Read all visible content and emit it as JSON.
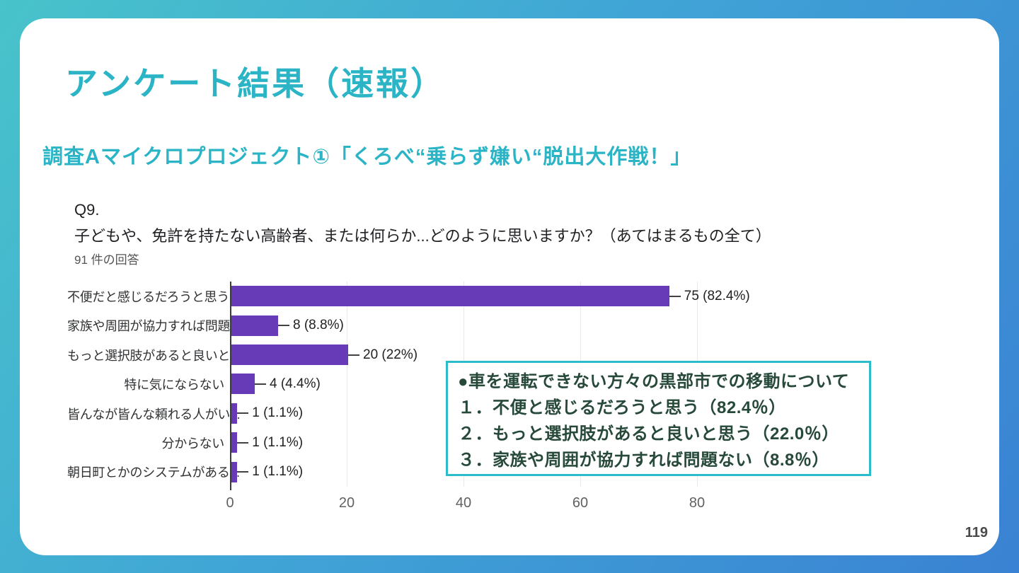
{
  "slide": {
    "title": "アンケート結果（速報）",
    "subtitle": "調査Aマイクロプロジェクト①「くろべ“乗らず嫌い“脱出大作戦！」",
    "page_number": "119"
  },
  "chart_data": {
    "type": "bar",
    "orientation": "horizontal",
    "question_number": "Q9.",
    "question": "子どもや、免許を持たない高齢者、または何らか...どのように思いますか？（あてはまるもの全て）",
    "responses_note": "91 件の回答",
    "categories": [
      "不便だと感じるだろうと思う",
      "家族や周囲が協力すれば問題...",
      "もっと選択肢があると良いと...",
      "特に気にならない",
      "皆んなが皆んな頼れる人がい...",
      "分からない",
      "朝日町とかのシステムがある..."
    ],
    "values": [
      75,
      8,
      20,
      4,
      1,
      1,
      1
    ],
    "value_labels": [
      "75 (82.4%)",
      "8 (8.8%)",
      "20 (22%)",
      "4 (4.4%)",
      "1 (1.1%)",
      "1 (1.1%)",
      "1 (1.1%)"
    ],
    "x_ticks": [
      0,
      20,
      40,
      60,
      80
    ],
    "xlim": [
      0,
      94
    ],
    "grid": true,
    "legend": "none",
    "bar_color": "#673ab7"
  },
  "annotation": {
    "heading": "●車を運転できない方々の黒部市での移動について",
    "items": [
      "１．不便と感じるだろうと思う（82.4％）",
      "２．もっと選択肢があると良いと思う（22.0％）",
      "３．家族や周囲が協力すれば問題ない（8.8％）"
    ],
    "border_color": "#2cbccb",
    "text_color": "#27493a"
  },
  "colors": {
    "accent_teal": "#2ab4c5",
    "background_top_left": "#48c3ca",
    "background_bottom_right": "#3a82d3",
    "bar_purple": "#673ab7"
  }
}
